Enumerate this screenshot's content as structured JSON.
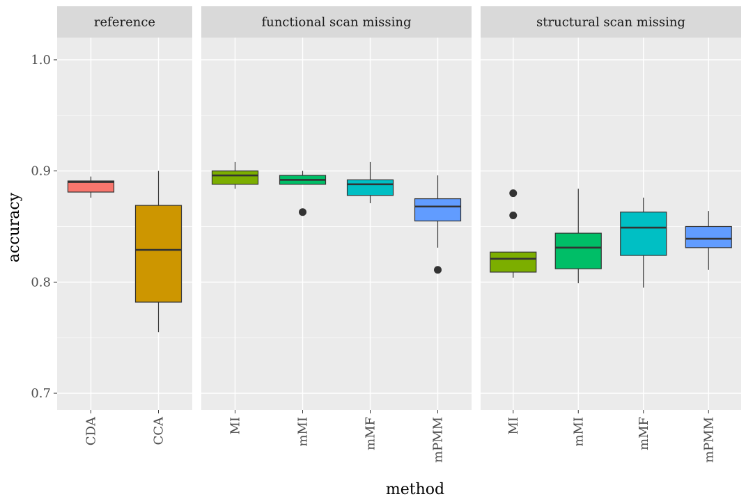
{
  "chart_data": {
    "type": "box",
    "xlabel": "method",
    "ylabel": "accuracy",
    "ylim": [
      0.685,
      1.02
    ],
    "yticks": [
      0.7,
      0.8,
      0.9,
      1.0
    ],
    "ytick_labels": [
      "0.7",
      "0.8",
      "0.9",
      "1.0"
    ],
    "grid": true,
    "legend": "none",
    "facets": [
      {
        "label": "reference",
        "boxes": [
          {
            "method": "CDA",
            "color": "#F8766D",
            "q1": 0.881,
            "median": 0.89,
            "q3": 0.891,
            "whisker_low": 0.876,
            "whisker_high": 0.895,
            "outliers": []
          },
          {
            "method": "CCA",
            "color": "#CD9600",
            "q1": 0.782,
            "median": 0.829,
            "q3": 0.869,
            "whisker_low": 0.755,
            "whisker_high": 0.9,
            "outliers": []
          }
        ]
      },
      {
        "label": "functional scan missing",
        "boxes": [
          {
            "method": "MI",
            "color": "#7CAE00",
            "q1": 0.888,
            "median": 0.896,
            "q3": 0.9,
            "whisker_low": 0.884,
            "whisker_high": 0.908,
            "outliers": []
          },
          {
            "method": "mMI",
            "color": "#00BE67",
            "q1": 0.888,
            "median": 0.892,
            "q3": 0.896,
            "whisker_low": 0.888,
            "whisker_high": 0.9,
            "outliers": [
              0.863
            ]
          },
          {
            "method": "mMF",
            "color": "#00BFC4",
            "q1": 0.878,
            "median": 0.888,
            "q3": 0.892,
            "whisker_low": 0.871,
            "whisker_high": 0.908,
            "outliers": []
          },
          {
            "method": "mPMM",
            "color": "#619CFF",
            "q1": 0.855,
            "median": 0.868,
            "q3": 0.875,
            "whisker_low": 0.831,
            "whisker_high": 0.896,
            "outliers": [
              0.811
            ]
          }
        ]
      },
      {
        "label": "structural scan missing",
        "boxes": [
          {
            "method": "MI",
            "color": "#7CAE00",
            "q1": 0.809,
            "median": 0.821,
            "q3": 0.827,
            "whisker_low": 0.804,
            "whisker_high": 0.827,
            "outliers": [
              0.86,
              0.88
            ]
          },
          {
            "method": "mMI",
            "color": "#00BE67",
            "q1": 0.812,
            "median": 0.831,
            "q3": 0.844,
            "whisker_low": 0.799,
            "whisker_high": 0.884,
            "outliers": []
          },
          {
            "method": "mMF",
            "color": "#00BFC4",
            "q1": 0.824,
            "median": 0.849,
            "q3": 0.863,
            "whisker_low": 0.795,
            "whisker_high": 0.876,
            "outliers": []
          },
          {
            "method": "mPMM",
            "color": "#619CFF",
            "q1": 0.831,
            "median": 0.839,
            "q3": 0.85,
            "whisker_low": 0.811,
            "whisker_high": 0.864,
            "outliers": []
          }
        ]
      }
    ]
  }
}
